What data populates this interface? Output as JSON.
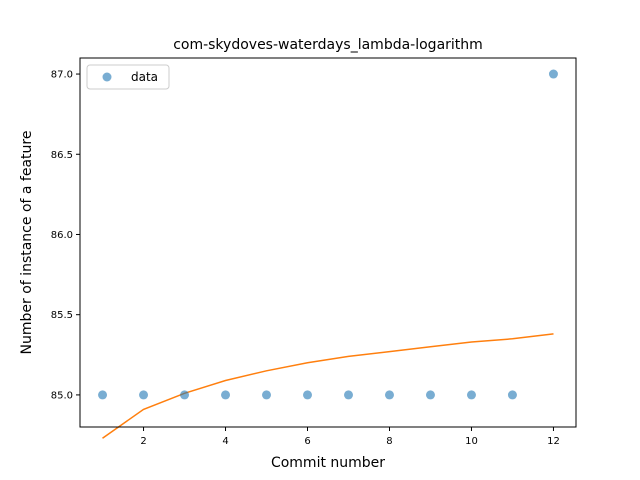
{
  "chart_data": {
    "type": "scatter",
    "title": "com-skydoves-waterdays_lambda-logarithm",
    "xlabel": "Commit number",
    "ylabel": "Number of instance of a feature",
    "xlim": [
      0.45,
      12.55
    ],
    "ylim": [
      84.8,
      87.1
    ],
    "xticks": [
      2,
      4,
      6,
      8,
      10,
      12
    ],
    "yticks": [
      85.0,
      85.5,
      86.0,
      86.5,
      87.0
    ],
    "xtick_labels": [
      "2",
      "4",
      "6",
      "8",
      "10",
      "12"
    ],
    "ytick_labels": [
      "85.0",
      "85.5",
      "86.0",
      "86.5",
      "87.0"
    ],
    "grid": false,
    "legend_position": "upper-left",
    "series": [
      {
        "name": "data",
        "kind": "scatter",
        "color": "#1f77b4",
        "x": [
          1,
          2,
          3,
          4,
          5,
          6,
          7,
          8,
          9,
          10,
          11,
          12
        ],
        "y": [
          85,
          85,
          85,
          85,
          85,
          85,
          85,
          85,
          85,
          85,
          85,
          87
        ]
      },
      {
        "kind": "line",
        "color": "#ff7f0e",
        "x": [
          1,
          2,
          3,
          4,
          5,
          6,
          7,
          8,
          9,
          10,
          11,
          12
        ],
        "y": [
          84.73,
          84.91,
          85.01,
          85.09,
          85.15,
          85.2,
          85.24,
          85.27,
          85.3,
          85.33,
          85.35,
          85.38
        ]
      }
    ]
  }
}
